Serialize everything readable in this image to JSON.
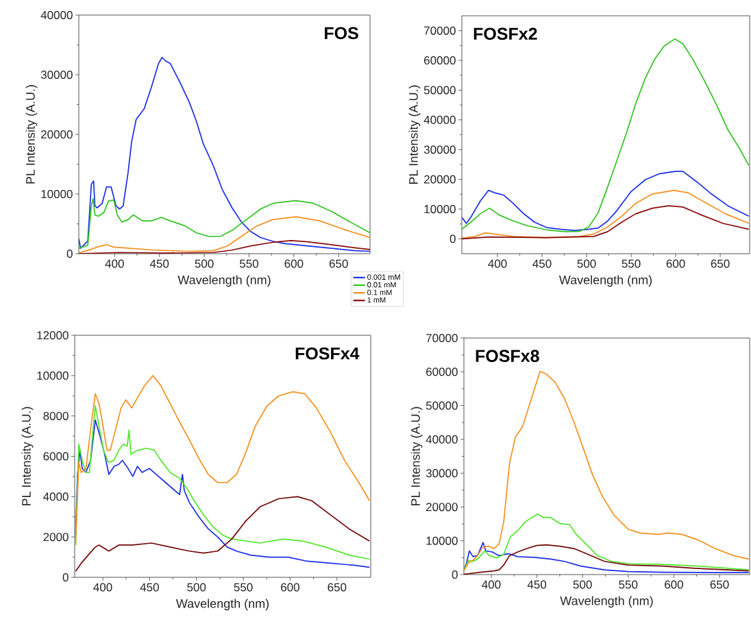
{
  "chart_data": [
    {
      "type": "line",
      "title": "FOS",
      "xlabel": "Wavelength (nm)",
      "ylabel": "PL Intensity (A.U.)",
      "xlim": [
        360,
        685
      ],
      "ylim": [
        0,
        40000
      ],
      "xticks": [
        400,
        450,
        500,
        550,
        600,
        650
      ],
      "yticks": [
        0,
        10000,
        20000,
        30000,
        40000
      ],
      "line_style": "solid",
      "series": [
        {
          "color": "#1a2ee6",
          "x": [
            360,
            362,
            370,
            374,
            376.5,
            378,
            380.5,
            386,
            391,
            396,
            401.6,
            405.5,
            409.5,
            415,
            419,
            424,
            433,
            441,
            449,
            453,
            457,
            462,
            473,
            483,
            491,
            499,
            510,
            520,
            531,
            541.5,
            552,
            563,
            576,
            589,
            615,
            642,
            668,
            685
          ],
          "values": [
            2500,
            900,
            2100,
            11600,
            12200,
            8000,
            7700,
            8400,
            11200,
            11200,
            8000,
            7500,
            8000,
            13600,
            18800,
            22500,
            24300,
            27900,
            31900,
            32900,
            32300,
            31900,
            28700,
            25500,
            22300,
            18400,
            14800,
            10800,
            7700,
            5300,
            3700,
            2700,
            2100,
            1700,
            1300,
            900,
            500,
            400
          ]
        },
        {
          "color": "#2fc41e",
          "x": [
            360,
            370,
            374,
            376,
            378,
            382,
            388,
            393,
            399,
            403,
            408,
            415,
            421,
            431,
            441,
            452,
            462,
            478,
            491,
            504.5,
            518,
            531,
            547,
            563,
            578,
            602,
            621,
            642,
            663,
            685
          ],
          "values": [
            900,
            1400,
            8000,
            9200,
            6500,
            6300,
            6900,
            8800,
            9000,
            6500,
            5300,
            5700,
            6500,
            5500,
            5500,
            6100,
            5500,
            4700,
            3500,
            2900,
            2900,
            3900,
            5700,
            7500,
            8500,
            8900,
            8500,
            7100,
            5300,
            3500
          ]
        },
        {
          "color": "#f5901e",
          "x": [
            360,
            373,
            380,
            391,
            399,
            417,
            444,
            483,
            510,
            526,
            541.5,
            557,
            576,
            602,
            629,
            655,
            685
          ],
          "values": [
            100,
            700,
            1100,
            1500,
            1100,
            900,
            600,
            400,
            500,
            1300,
            2900,
            4500,
            5700,
            6200,
            5500,
            4100,
            2700
          ]
        },
        {
          "color": "#8b0a0a",
          "x": [
            360,
            404,
            457,
            510,
            531,
            552,
            576,
            597,
            615,
            642,
            668,
            685
          ],
          "values": [
            0,
            200,
            100,
            200,
            600,
            1300,
            1900,
            2200,
            2000,
            1500,
            1000,
            700
          ]
        }
      ]
    },
    {
      "type": "line",
      "title": "FOSFx2",
      "xlabel": "Wavelength (nm)",
      "ylabel": "PL Intensity (A.U.)",
      "xlim": [
        360,
        683
      ],
      "ylim": [
        -5000,
        75000
      ],
      "xticks": [
        400,
        450,
        500,
        550,
        600,
        650
      ],
      "yticks": [
        0,
        10000,
        20000,
        30000,
        40000,
        50000,
        60000,
        70000
      ],
      "line_style": "solid",
      "legend": "bottom left",
      "series": [
        {
          "name": "0.001 mM",
          "color": "#1a2ee6",
          "x": [
            360,
            365,
            370,
            380.7,
            390,
            396.6,
            407,
            417.7,
            428,
            441.6,
            455,
            470.7,
            486.6,
            502.5,
            513,
            523.7,
            534,
            550,
            566,
            582,
            600,
            608,
            624,
            640,
            658.7,
            682
          ],
          "values": [
            7200,
            5200,
            7200,
            12700,
            16300,
            15500,
            14700,
            11900,
            8800,
            5600,
            3800,
            3200,
            2800,
            3200,
            3600,
            6000,
            9500,
            15900,
            19900,
            21900,
            22700,
            22700,
            19100,
            15100,
            11100,
            7600
          ]
        },
        {
          "name": "0.01 mM",
          "color": "#2fc41e",
          "x": [
            360,
            370,
            380.7,
            391,
            402,
            417.7,
            433.6,
            455,
            476,
            492,
            502.5,
            513,
            523.7,
            534,
            545,
            555,
            566,
            576.6,
            587,
            599,
            608,
            619,
            632,
            645.5,
            658.7,
            672,
            682
          ],
          "values": [
            3200,
            5600,
            8400,
            10300,
            8000,
            6000,
            4400,
            3000,
            2400,
            2500,
            4000,
            8800,
            17500,
            26300,
            35800,
            45300,
            54100,
            60500,
            64800,
            67200,
            65600,
            60500,
            53300,
            45300,
            36600,
            30200,
            24700
          ]
        },
        {
          "name": "0.1 mM",
          "color": "#f5901e",
          "x": [
            360,
            375,
            386,
            396.6,
            417.7,
            455,
            492,
            508,
            523.7,
            539.5,
            555,
            574,
            598,
            613.7,
            635,
            656,
            682
          ],
          "values": [
            200,
            800,
            2000,
            1600,
            800,
            400,
            800,
            1600,
            4000,
            7600,
            11900,
            15100,
            16300,
            15500,
            11900,
            8400,
            5200
          ]
        },
        {
          "name": "1 mM",
          "color": "#8b0a0a",
          "x": [
            360,
            391,
            455,
            508,
            523.7,
            539.5,
            555,
            574,
            592,
            608,
            629,
            653,
            682
          ],
          "values": [
            0,
            600,
            400,
            800,
            2400,
            5600,
            8400,
            10300,
            11100,
            10700,
            8000,
            5200,
            3200
          ]
        }
      ]
    },
    {
      "type": "line",
      "title": "FOSFx4",
      "xlabel": "Wavelength (nm)",
      "ylabel": "PL Intensity (A.U.)",
      "xlim": [
        370,
        686
      ],
      "ylim": [
        0,
        12000
      ],
      "xticks": [
        400,
        450,
        500,
        550,
        600,
        650
      ],
      "yticks": [
        0,
        2000,
        4000,
        6000,
        8000,
        10000,
        12000
      ],
      "line_style": "solid",
      "series": [
        {
          "color": "#1a2ee6",
          "x": [
            371,
            373,
            375.6,
            378,
            382,
            387,
            392,
            397,
            402,
            406.5,
            412,
            417,
            421,
            427,
            432,
            437,
            442,
            449.7,
            457,
            467,
            477,
            482,
            485,
            487,
            492.5,
            502.5,
            512.6,
            522.6,
            532.7,
            542.7,
            557.8,
            577.9,
            598,
            618,
            643,
            668.4,
            684.7
          ],
          "values": [
            2100,
            5100,
            6300,
            5400,
            5200,
            5800,
            7800,
            7000,
            6100,
            5100,
            5500,
            5600,
            5800,
            5400,
            5000,
            5500,
            5200,
            5400,
            5100,
            4700,
            4300,
            4100,
            5100,
            4300,
            3700,
            3000,
            2400,
            2000,
            1500,
            1300,
            1100,
            1000,
            1000,
            800,
            700,
            600,
            500
          ]
        },
        {
          "color": "#4fe82a",
          "x": [
            371,
            374.4,
            378,
            382,
            385.7,
            389.4,
            392,
            396,
            400.8,
            406,
            412,
            417,
            422,
            426,
            428,
            430,
            437,
            447,
            455,
            462,
            472,
            482,
            490,
            497.5,
            507.5,
            517.6,
            527.7,
            537.7,
            552.8,
            567.9,
            593,
            613,
            638,
            663,
            684.7
          ],
          "values": [
            1600,
            6600,
            5800,
            5200,
            5200,
            7200,
            8500,
            7500,
            6300,
            5700,
            5800,
            6300,
            6600,
            6500,
            7300,
            6100,
            6300,
            6400,
            6300,
            5800,
            5200,
            4900,
            4400,
            3800,
            3100,
            2500,
            2100,
            1900,
            1800,
            1700,
            1900,
            1800,
            1500,
            1100,
            900
          ]
        },
        {
          "color": "#f5901e",
          "x": [
            371,
            374.4,
            377,
            382,
            388,
            392,
            396,
            399.5,
            404.5,
            408,
            414.6,
            419.6,
            424.6,
            431,
            437,
            444.7,
            453.5,
            462,
            472,
            482,
            492.5,
            502.5,
            512.6,
            522.6,
            532.7,
            542.7,
            552.8,
            562.8,
            575.4,
            588,
            603,
            615.6,
            628,
            643,
            658,
            673.4,
            684.7
          ],
          "values": [
            1700,
            5700,
            5200,
            5400,
            7700,
            9100,
            8600,
            7700,
            6300,
            6300,
            7500,
            8400,
            8800,
            8400,
            8900,
            9500,
            10000,
            9500,
            8600,
            7700,
            6800,
            5900,
            5100,
            4700,
            4700,
            5100,
            6200,
            7500,
            8500,
            9000,
            9200,
            9100,
            8400,
            7200,
            5800,
            4700,
            3800
          ]
        },
        {
          "color": "#700808",
          "x": [
            371,
            377,
            384.4,
            392,
            396,
            406.5,
            417,
            432,
            452,
            472,
            492.5,
            507.5,
            522.6,
            537.7,
            552.8,
            568,
            588,
            608,
            623,
            643,
            663,
            684.7
          ],
          "values": [
            300,
            700,
            1100,
            1500,
            1600,
            1300,
            1600,
            1600,
            1700,
            1500,
            1300,
            1200,
            1300,
            1900,
            2800,
            3500,
            3900,
            4000,
            3800,
            3100,
            2400,
            1800
          ]
        }
      ]
    },
    {
      "type": "line",
      "title": "FOSFx8",
      "xlabel": "Wavelength (nm)",
      "ylabel": "PL Intensity (A.U.)",
      "xlim": [
        370,
        683
      ],
      "ylim": [
        0,
        70000
      ],
      "xticks": [
        400,
        450,
        500,
        550,
        600,
        650
      ],
      "yticks": [
        0,
        10000,
        20000,
        30000,
        40000,
        50000,
        60000,
        70000
      ],
      "line_style": "solid",
      "series": [
        {
          "color": "#1a2ee6",
          "x": [
            370,
            373,
            376,
            380,
            385,
            391,
            394,
            401,
            408.5,
            419,
            429,
            447,
            465,
            480,
            498,
            524,
            550,
            588,
            640,
            682
          ],
          "values": [
            1400,
            3500,
            7000,
            5300,
            5600,
            9500,
            7000,
            6700,
            5600,
            6200,
            5300,
            5100,
            4600,
            3900,
            2500,
            1400,
            900,
            700,
            600,
            600
          ]
        },
        {
          "color": "#4fe82a",
          "x": [
            370,
            375,
            380,
            385,
            393,
            398,
            406,
            413.6,
            421,
            429,
            436.7,
            444.5,
            451,
            457,
            465,
            475,
            485.6,
            493,
            503.6,
            516.4,
            531.8,
            552,
            588,
            627,
            682
          ],
          "values": [
            1400,
            4200,
            3900,
            4600,
            7000,
            5600,
            4900,
            6000,
            11200,
            13000,
            15500,
            16900,
            17900,
            16900,
            16900,
            15100,
            14800,
            11900,
            9100,
            5600,
            3900,
            3200,
            3000,
            2500,
            1400
          ]
        },
        {
          "color": "#f5901e",
          "x": [
            370,
            375,
            380,
            385,
            390.5,
            397,
            403,
            408.5,
            413.6,
            420,
            426.5,
            434,
            440.6,
            448,
            453.4,
            460,
            470,
            480.4,
            490.7,
            501,
            511,
            521.6,
            534.4,
            550,
            563,
            583,
            593.5,
            609,
            627,
            645,
            665.5,
            682
          ],
          "values": [
            1100,
            3500,
            4200,
            5600,
            8100,
            8400,
            7700,
            9100,
            15500,
            33000,
            40800,
            43600,
            49200,
            55500,
            60100,
            59400,
            56900,
            52000,
            45000,
            37200,
            29500,
            23200,
            17600,
            13400,
            12300,
            11900,
            12300,
            11900,
            10200,
            7700,
            5600,
            4600
          ]
        },
        {
          "color": "#700808",
          "x": [
            370,
            388,
            403,
            408.5,
            413.6,
            420,
            429,
            439,
            449.6,
            460,
            475,
            490.7,
            506,
            524,
            550,
            588,
            627,
            682
          ],
          "values": [
            100,
            700,
            1100,
            1400,
            2800,
            5600,
            6700,
            7700,
            8600,
            8800,
            8400,
            7700,
            6000,
            3900,
            2800,
            2500,
            1800,
            1100
          ]
        }
      ]
    }
  ]
}
